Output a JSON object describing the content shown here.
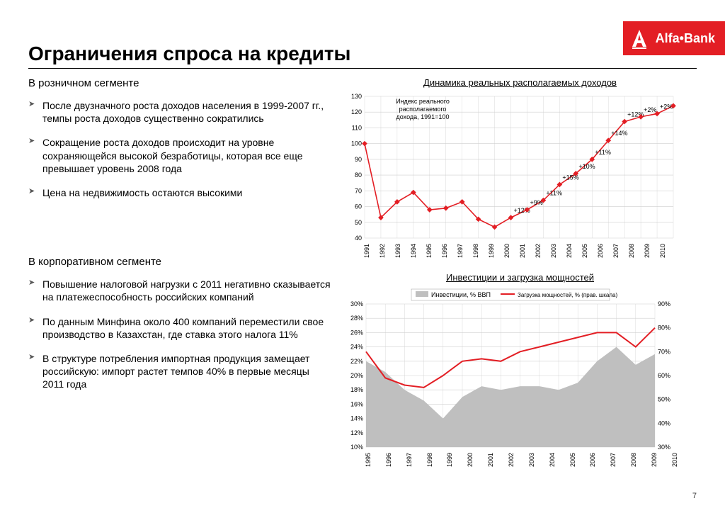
{
  "brand": {
    "name": "Alfa•Bank",
    "bg": "#e31e24"
  },
  "title": "Ограничения спроса на кредиты",
  "pageNumber": "7",
  "retail": {
    "heading": "В розничном сегменте",
    "bullets": [
      "После двузначного роста доходов населения в 1999-2007 гг., темпы роста доходов существенно сократились",
      "Сокращение роста доходов происходит на уровне сохраняющейся высокой безработицы, которая все еще превышает уровень 2008 года",
      "Цена на недвижимость остаются высокими"
    ]
  },
  "corporate": {
    "heading": "В корпоративном сегменте",
    "bullets": [
      "Повышение налоговой нагрузки с 2011 негативно сказывается на платежеспособность российских компаний",
      "По данным Минфина около 400 компаний переместили свое производство в Казахстан, где ставка этого налога 11%",
      "В структуре потребления импортная продукция замещает российскую: импорт растет темпов 40% в первые месяцы 2011 года"
    ]
  },
  "chart1": {
    "title": "Динамика реальных располагаемых доходов",
    "note": "Индекс реального располагаемого дохода, 1991=100",
    "type": "line",
    "years": [
      "1991",
      "1992",
      "1993",
      "1994",
      "1995",
      "1996",
      "1997",
      "1998",
      "1999",
      "2000",
      "2001",
      "2002",
      "2003",
      "2004",
      "2005",
      "2006",
      "2007",
      "2008",
      "2009",
      "2010"
    ],
    "values": [
      100,
      53,
      63,
      69,
      58,
      59,
      63,
      52,
      47,
      53,
      58,
      64,
      74,
      81,
      90,
      102,
      114,
      117,
      119,
      124
    ],
    "labels": [
      "",
      "",
      "",
      "",
      "",
      "",
      "",
      "",
      "",
      "+12%",
      "+9%",
      "+11%",
      "+15%",
      "+10%",
      "+11%",
      "+14%",
      "+12%",
      "+2%",
      "+2%",
      "+4%"
    ],
    "ymin": 40,
    "ymax": 130,
    "ystep": 10,
    "line_color": "#e31e24",
    "grid_color": "#cfcfcf",
    "bg": "#ffffff",
    "marker": "diamond",
    "marker_size": 5
  },
  "chart2": {
    "title": "Инвестиции и загрузка мощностей",
    "type": "dual-axis",
    "years": [
      "1995",
      "1996",
      "1997",
      "1998",
      "1999",
      "2000",
      "2001",
      "2002",
      "2003",
      "2004",
      "2005",
      "2006",
      "2007",
      "2008",
      "2009",
      "2010"
    ],
    "area": {
      "label": "Инвестиции, % ВВП",
      "color": "#bfbfbf",
      "values": [
        22,
        20.5,
        18,
        16.5,
        14,
        17,
        18.5,
        18,
        18.5,
        18.5,
        18,
        19,
        22,
        24,
        21.5,
        23
      ],
      "ymin": 10,
      "ymax": 30,
      "ystep": 2
    },
    "line": {
      "label": "Загрузка мощностей, % (прав. шкала)",
      "color": "#e31e24",
      "values": [
        70,
        59,
        56,
        55,
        60,
        66,
        67,
        66,
        70,
        72,
        74,
        76,
        78,
        78,
        72,
        80
      ],
      "ymin": 30,
      "ymax": 90,
      "ystep": 10
    },
    "grid_color": "#cfcfcf"
  }
}
